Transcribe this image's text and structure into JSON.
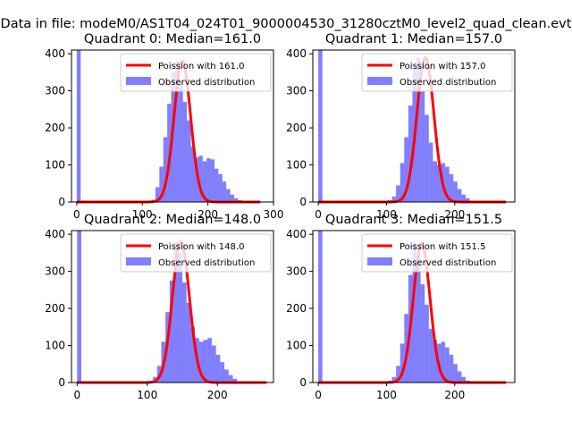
{
  "figure": {
    "suptitle": "Data in file: modeM0/AS1T04_024T01_9000004530_31280cztM0_level2_quad_clean.evt"
  },
  "colors": {
    "histogram": "#0000ff",
    "histogram_alpha": 0.5,
    "poisson_line": "#ff0000",
    "axes": "#000000",
    "background": "#ffffff"
  },
  "chart_data": [
    {
      "type": "bar",
      "title": "Quadrant 0: Median=161.0",
      "median": 161.0,
      "xlim": [
        -8,
        300
      ],
      "ylim": [
        0,
        410
      ],
      "xticks": [
        0,
        100,
        200,
        300
      ],
      "yticks": [
        0,
        100,
        200,
        300,
        400
      ],
      "bin_width": 6,
      "bins": [
        {
          "x": 0,
          "y": 410
        },
        {
          "x": 114,
          "y": 6
        },
        {
          "x": 120,
          "y": 40
        },
        {
          "x": 126,
          "y": 95
        },
        {
          "x": 132,
          "y": 175
        },
        {
          "x": 138,
          "y": 265
        },
        {
          "x": 144,
          "y": 350
        },
        {
          "x": 150,
          "y": 380
        },
        {
          "x": 156,
          "y": 325
        },
        {
          "x": 162,
          "y": 270
        },
        {
          "x": 168,
          "y": 220
        },
        {
          "x": 174,
          "y": 150
        },
        {
          "x": 180,
          "y": 120
        },
        {
          "x": 186,
          "y": 125
        },
        {
          "x": 192,
          "y": 110
        },
        {
          "x": 198,
          "y": 118
        },
        {
          "x": 204,
          "y": 115
        },
        {
          "x": 210,
          "y": 90
        },
        {
          "x": 216,
          "y": 75
        },
        {
          "x": 222,
          "y": 55
        },
        {
          "x": 228,
          "y": 35
        },
        {
          "x": 234,
          "y": 20
        },
        {
          "x": 240,
          "y": 10
        },
        {
          "x": 246,
          "y": 5
        }
      ],
      "poisson_label": "Poission with 161.0",
      "hist_label": "Observed distribution",
      "line_x_range": [
        0,
        280
      ],
      "legend_position": "upper right"
    },
    {
      "type": "bar",
      "title": "Quadrant 1: Median=157.0",
      "median": 157.0,
      "xlim": [
        -8,
        288
      ],
      "ylim": [
        0,
        410
      ],
      "xticks": [
        0,
        100,
        200
      ],
      "yticks": [
        0,
        100,
        200,
        300,
        400
      ],
      "bin_width": 6,
      "bins": [
        {
          "x": 0,
          "y": 410
        },
        {
          "x": 102,
          "y": 5
        },
        {
          "x": 108,
          "y": 15
        },
        {
          "x": 114,
          "y": 45
        },
        {
          "x": 120,
          "y": 105
        },
        {
          "x": 126,
          "y": 175
        },
        {
          "x": 132,
          "y": 260
        },
        {
          "x": 138,
          "y": 360
        },
        {
          "x": 144,
          "y": 390
        },
        {
          "x": 150,
          "y": 300
        },
        {
          "x": 156,
          "y": 235
        },
        {
          "x": 162,
          "y": 160
        },
        {
          "x": 168,
          "y": 110
        },
        {
          "x": 174,
          "y": 100
        },
        {
          "x": 180,
          "y": 105
        },
        {
          "x": 186,
          "y": 95
        },
        {
          "x": 192,
          "y": 75
        },
        {
          "x": 198,
          "y": 55
        },
        {
          "x": 204,
          "y": 35
        },
        {
          "x": 210,
          "y": 20
        },
        {
          "x": 216,
          "y": 10
        }
      ],
      "poisson_label": "Poission with 157.0",
      "hist_label": "Observed distribution",
      "line_x_range": [
        0,
        275
      ],
      "legend_position": "upper right"
    },
    {
      "type": "bar",
      "title": "Quadrant 2: Median=148.0",
      "median": 148.0,
      "xlim": [
        -8,
        280
      ],
      "ylim": [
        0,
        410
      ],
      "xticks": [
        0,
        100,
        200
      ],
      "yticks": [
        0,
        100,
        200,
        300,
        400
      ],
      "bin_width": 6,
      "bins": [
        {
          "x": 0,
          "y": 410
        },
        {
          "x": 102,
          "y": 5
        },
        {
          "x": 108,
          "y": 15
        },
        {
          "x": 114,
          "y": 45
        },
        {
          "x": 120,
          "y": 110
        },
        {
          "x": 126,
          "y": 190
        },
        {
          "x": 132,
          "y": 275
        },
        {
          "x": 138,
          "y": 380
        },
        {
          "x": 144,
          "y": 350
        },
        {
          "x": 150,
          "y": 270
        },
        {
          "x": 156,
          "y": 215
        },
        {
          "x": 162,
          "y": 150
        },
        {
          "x": 168,
          "y": 120
        },
        {
          "x": 174,
          "y": 110
        },
        {
          "x": 180,
          "y": 115
        },
        {
          "x": 186,
          "y": 120
        },
        {
          "x": 192,
          "y": 100
        },
        {
          "x": 198,
          "y": 75
        },
        {
          "x": 204,
          "y": 55
        },
        {
          "x": 210,
          "y": 35
        },
        {
          "x": 216,
          "y": 20
        },
        {
          "x": 222,
          "y": 10
        }
      ],
      "poisson_label": "Poission with 148.0",
      "hist_label": "Observed distribution",
      "line_x_range": [
        0,
        270
      ],
      "legend_position": "upper right"
    },
    {
      "type": "bar",
      "title": "Quadrant 3: Median=151.5",
      "median": 151.5,
      "xlim": [
        -8,
        288
      ],
      "ylim": [
        0,
        410
      ],
      "xticks": [
        0,
        100,
        200
      ],
      "yticks": [
        0,
        100,
        200,
        300,
        400
      ],
      "bin_width": 6,
      "bins": [
        {
          "x": 0,
          "y": 410
        },
        {
          "x": 102,
          "y": 5
        },
        {
          "x": 108,
          "y": 15
        },
        {
          "x": 114,
          "y": 45
        },
        {
          "x": 120,
          "y": 105
        },
        {
          "x": 126,
          "y": 185
        },
        {
          "x": 132,
          "y": 290
        },
        {
          "x": 138,
          "y": 375
        },
        {
          "x": 144,
          "y": 345
        },
        {
          "x": 150,
          "y": 265
        },
        {
          "x": 156,
          "y": 210
        },
        {
          "x": 162,
          "y": 145
        },
        {
          "x": 168,
          "y": 115
        },
        {
          "x": 174,
          "y": 105
        },
        {
          "x": 180,
          "y": 110
        },
        {
          "x": 186,
          "y": 95
        },
        {
          "x": 192,
          "y": 75
        },
        {
          "x": 198,
          "y": 50
        },
        {
          "x": 204,
          "y": 30
        },
        {
          "x": 210,
          "y": 15
        },
        {
          "x": 216,
          "y": 5
        }
      ],
      "poisson_label": "Poission with 151.5",
      "hist_label": "Observed distribution",
      "line_x_range": [
        0,
        275
      ],
      "legend_position": "upper right"
    }
  ]
}
